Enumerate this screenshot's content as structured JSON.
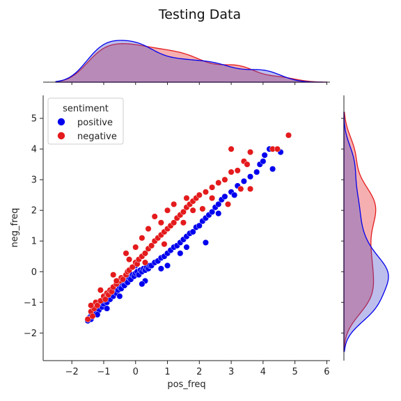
{
  "chart_data": {
    "type": "scatter",
    "title": "Testing Data",
    "xlabel": "pos_freq",
    "ylabel": "neg_freq",
    "xlim": [
      -2.9,
      6.1
    ],
    "ylim": [
      -2.9,
      5.75
    ],
    "xticks": [
      "−2",
      "−1",
      "0",
      "1",
      "2",
      "3",
      "4",
      "5",
      "6"
    ],
    "yticks": [
      "−2",
      "−1",
      "0",
      "1",
      "2",
      "3",
      "4",
      "5"
    ],
    "xtick_values": [
      -2,
      -1,
      0,
      1,
      2,
      3,
      4,
      5,
      6
    ],
    "ytick_values": [
      -2,
      -1,
      0,
      1,
      2,
      3,
      4,
      5
    ],
    "grid": false,
    "legend": {
      "title": "sentiment",
      "placement": "top-left",
      "entries": [
        "positive",
        "negative"
      ]
    },
    "series": [
      {
        "name": "positive",
        "color": "#0000ee",
        "points": [
          [
            -1.5,
            -1.6
          ],
          [
            -1.45,
            -1.5
          ],
          [
            -1.4,
            -1.45
          ],
          [
            -1.35,
            -1.35
          ],
          [
            -1.3,
            -1.4
          ],
          [
            -1.25,
            -1.3
          ],
          [
            -1.2,
            -1.2
          ],
          [
            -1.15,
            -1.25
          ],
          [
            -1.1,
            -1.1
          ],
          [
            -1.05,
            -1.15
          ],
          [
            -1.0,
            -1.05
          ],
          [
            -0.95,
            -0.95
          ],
          [
            -0.9,
            -1.0
          ],
          [
            -0.85,
            -0.85
          ],
          [
            -0.8,
            -0.9
          ],
          [
            -0.75,
            -0.75
          ],
          [
            -0.7,
            -0.8
          ],
          [
            -0.65,
            -0.65
          ],
          [
            -0.6,
            -0.7
          ],
          [
            -0.55,
            -0.6
          ],
          [
            -0.5,
            -0.5
          ],
          [
            -0.45,
            -0.55
          ],
          [
            -0.4,
            -0.4
          ],
          [
            -0.35,
            -0.45
          ],
          [
            -0.3,
            -0.3
          ],
          [
            -0.25,
            -0.35
          ],
          [
            -0.2,
            -0.2
          ],
          [
            -0.15,
            -0.25
          ],
          [
            -0.1,
            -0.1
          ],
          [
            -0.05,
            -0.15
          ],
          [
            0.0,
            -0.05
          ],
          [
            0.05,
            0.0
          ],
          [
            0.1,
            -0.1
          ],
          [
            0.15,
            0.05
          ],
          [
            0.2,
            0.0
          ],
          [
            0.25,
            0.1
          ],
          [
            0.3,
            0.05
          ],
          [
            0.35,
            0.15
          ],
          [
            0.4,
            0.1
          ],
          [
            0.45,
            0.2
          ],
          [
            0.5,
            0.2
          ],
          [
            0.6,
            0.3
          ],
          [
            0.7,
            0.35
          ],
          [
            0.8,
            0.45
          ],
          [
            0.9,
            0.5
          ],
          [
            1.0,
            0.6
          ],
          [
            1.1,
            0.7
          ],
          [
            1.2,
            0.8
          ],
          [
            1.3,
            0.85
          ],
          [
            1.4,
            0.95
          ],
          [
            1.5,
            1.05
          ],
          [
            1.6,
            1.15
          ],
          [
            1.7,
            1.25
          ],
          [
            1.8,
            1.3
          ],
          [
            1.9,
            1.45
          ],
          [
            2.0,
            1.5
          ],
          [
            2.1,
            1.65
          ],
          [
            2.2,
            1.75
          ],
          [
            2.3,
            1.85
          ],
          [
            2.4,
            1.95
          ],
          [
            2.5,
            2.1
          ],
          [
            2.6,
            2.2
          ],
          [
            2.7,
            2.35
          ],
          [
            2.8,
            2.45
          ],
          [
            3.0,
            2.6
          ],
          [
            3.2,
            2.8
          ],
          [
            3.4,
            2.95
          ],
          [
            3.6,
            3.1
          ],
          [
            3.8,
            3.25
          ],
          [
            3.9,
            3.5
          ],
          [
            4.0,
            3.6
          ],
          [
            4.05,
            3.8
          ],
          [
            4.2,
            4.0
          ],
          [
            4.3,
            3.35
          ],
          [
            4.55,
            3.9
          ],
          [
            2.2,
            0.95
          ],
          [
            -0.6,
            -0.3
          ],
          [
            0.3,
            -0.3
          ],
          [
            1.0,
            0.2
          ],
          [
            1.6,
            0.8
          ],
          [
            -1.2,
            -1.4
          ],
          [
            -0.9,
            -1.2
          ],
          [
            -0.5,
            -0.8
          ],
          [
            0.2,
            -0.4
          ],
          [
            0.8,
            0.1
          ],
          [
            1.4,
            0.6
          ],
          [
            2.6,
            1.9
          ],
          [
            3.1,
            2.5
          ],
          [
            -1.4,
            -1.55
          ],
          [
            0.0,
            0.2
          ]
        ]
      },
      {
        "name": "negative",
        "color": "#e41a1c",
        "points": [
          [
            -1.5,
            -1.55
          ],
          [
            -1.4,
            -1.3
          ],
          [
            -1.3,
            -1.2
          ],
          [
            -1.25,
            -1.0
          ],
          [
            -1.2,
            -1.1
          ],
          [
            -1.1,
            -0.95
          ],
          [
            -1.0,
            -0.8
          ],
          [
            -0.95,
            -0.9
          ],
          [
            -0.9,
            -0.7
          ],
          [
            -0.85,
            -0.75
          ],
          [
            -0.8,
            -0.6
          ],
          [
            -0.75,
            -0.65
          ],
          [
            -0.7,
            -0.5
          ],
          [
            -0.6,
            -0.4
          ],
          [
            -0.5,
            -0.3
          ],
          [
            -0.45,
            -0.2
          ],
          [
            -0.4,
            -0.25
          ],
          [
            -0.3,
            -0.1
          ],
          [
            -0.25,
            0.0
          ],
          [
            -0.2,
            0.05
          ],
          [
            -0.1,
            0.15
          ],
          [
            0.0,
            0.3
          ],
          [
            0.05,
            0.25
          ],
          [
            0.1,
            0.4
          ],
          [
            0.2,
            0.5
          ],
          [
            0.3,
            0.6
          ],
          [
            0.4,
            0.75
          ],
          [
            0.5,
            0.85
          ],
          [
            0.6,
            1.0
          ],
          [
            0.7,
            1.1
          ],
          [
            0.8,
            1.2
          ],
          [
            0.9,
            1.3
          ],
          [
            1.0,
            1.4
          ],
          [
            1.1,
            1.5
          ],
          [
            1.2,
            1.6
          ],
          [
            1.3,
            1.75
          ],
          [
            1.4,
            1.85
          ],
          [
            1.5,
            1.95
          ],
          [
            1.6,
            2.1
          ],
          [
            1.7,
            2.2
          ],
          [
            1.8,
            2.3
          ],
          [
            1.9,
            2.4
          ],
          [
            2.0,
            2.5
          ],
          [
            2.2,
            2.6
          ],
          [
            2.4,
            2.75
          ],
          [
            2.6,
            2.9
          ],
          [
            2.8,
            3.0
          ],
          [
            3.0,
            3.25
          ],
          [
            3.2,
            3.3
          ],
          [
            3.4,
            3.6
          ],
          [
            3.5,
            3.5
          ],
          [
            3.6,
            3.9
          ],
          [
            3.0,
            4.0
          ],
          [
            4.3,
            4.0
          ],
          [
            4.45,
            4.0
          ],
          [
            4.8,
            4.45
          ],
          [
            2.9,
            2.2
          ],
          [
            3.3,
            2.7
          ],
          [
            3.6,
            2.7
          ],
          [
            -0.3,
            0.6
          ],
          [
            0.2,
            1.1
          ],
          [
            0.6,
            1.8
          ],
          [
            1.2,
            2.2
          ],
          [
            1.6,
            2.4
          ],
          [
            -1.4,
            -1.1
          ],
          [
            -0.7,
            -0.1
          ],
          [
            0.0,
            0.8
          ],
          [
            0.4,
            1.4
          ],
          [
            1.0,
            2.0
          ],
          [
            2.4,
            2.4
          ],
          [
            -0.6,
            -0.3
          ],
          [
            0.3,
            0.3
          ],
          [
            0.9,
            0.9
          ],
          [
            1.5,
            1.6
          ],
          [
            2.1,
            2.05
          ],
          [
            -1.1,
            -0.6
          ],
          [
            -0.2,
            0.4
          ],
          [
            0.8,
            1.6
          ],
          [
            1.8,
            2.0
          ],
          [
            -1.35,
            -1.45
          ]
        ]
      }
    ]
  }
}
